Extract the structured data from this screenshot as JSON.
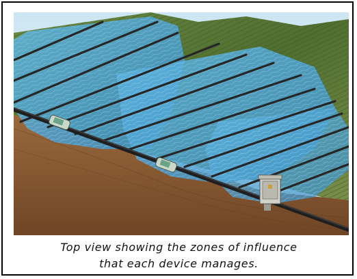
{
  "figure": {
    "caption_line1": "Top view showing the zones of influence",
    "caption_line2": "that each device manages."
  },
  "colors": {
    "sky": "#d9eef7",
    "soil": "#8a5a32",
    "soil_dark": "#6e4526",
    "grass": "#5d7a3a",
    "water": "#4aa6d8",
    "pipe": "#2b2b2b",
    "device": "#c9c9c0"
  }
}
